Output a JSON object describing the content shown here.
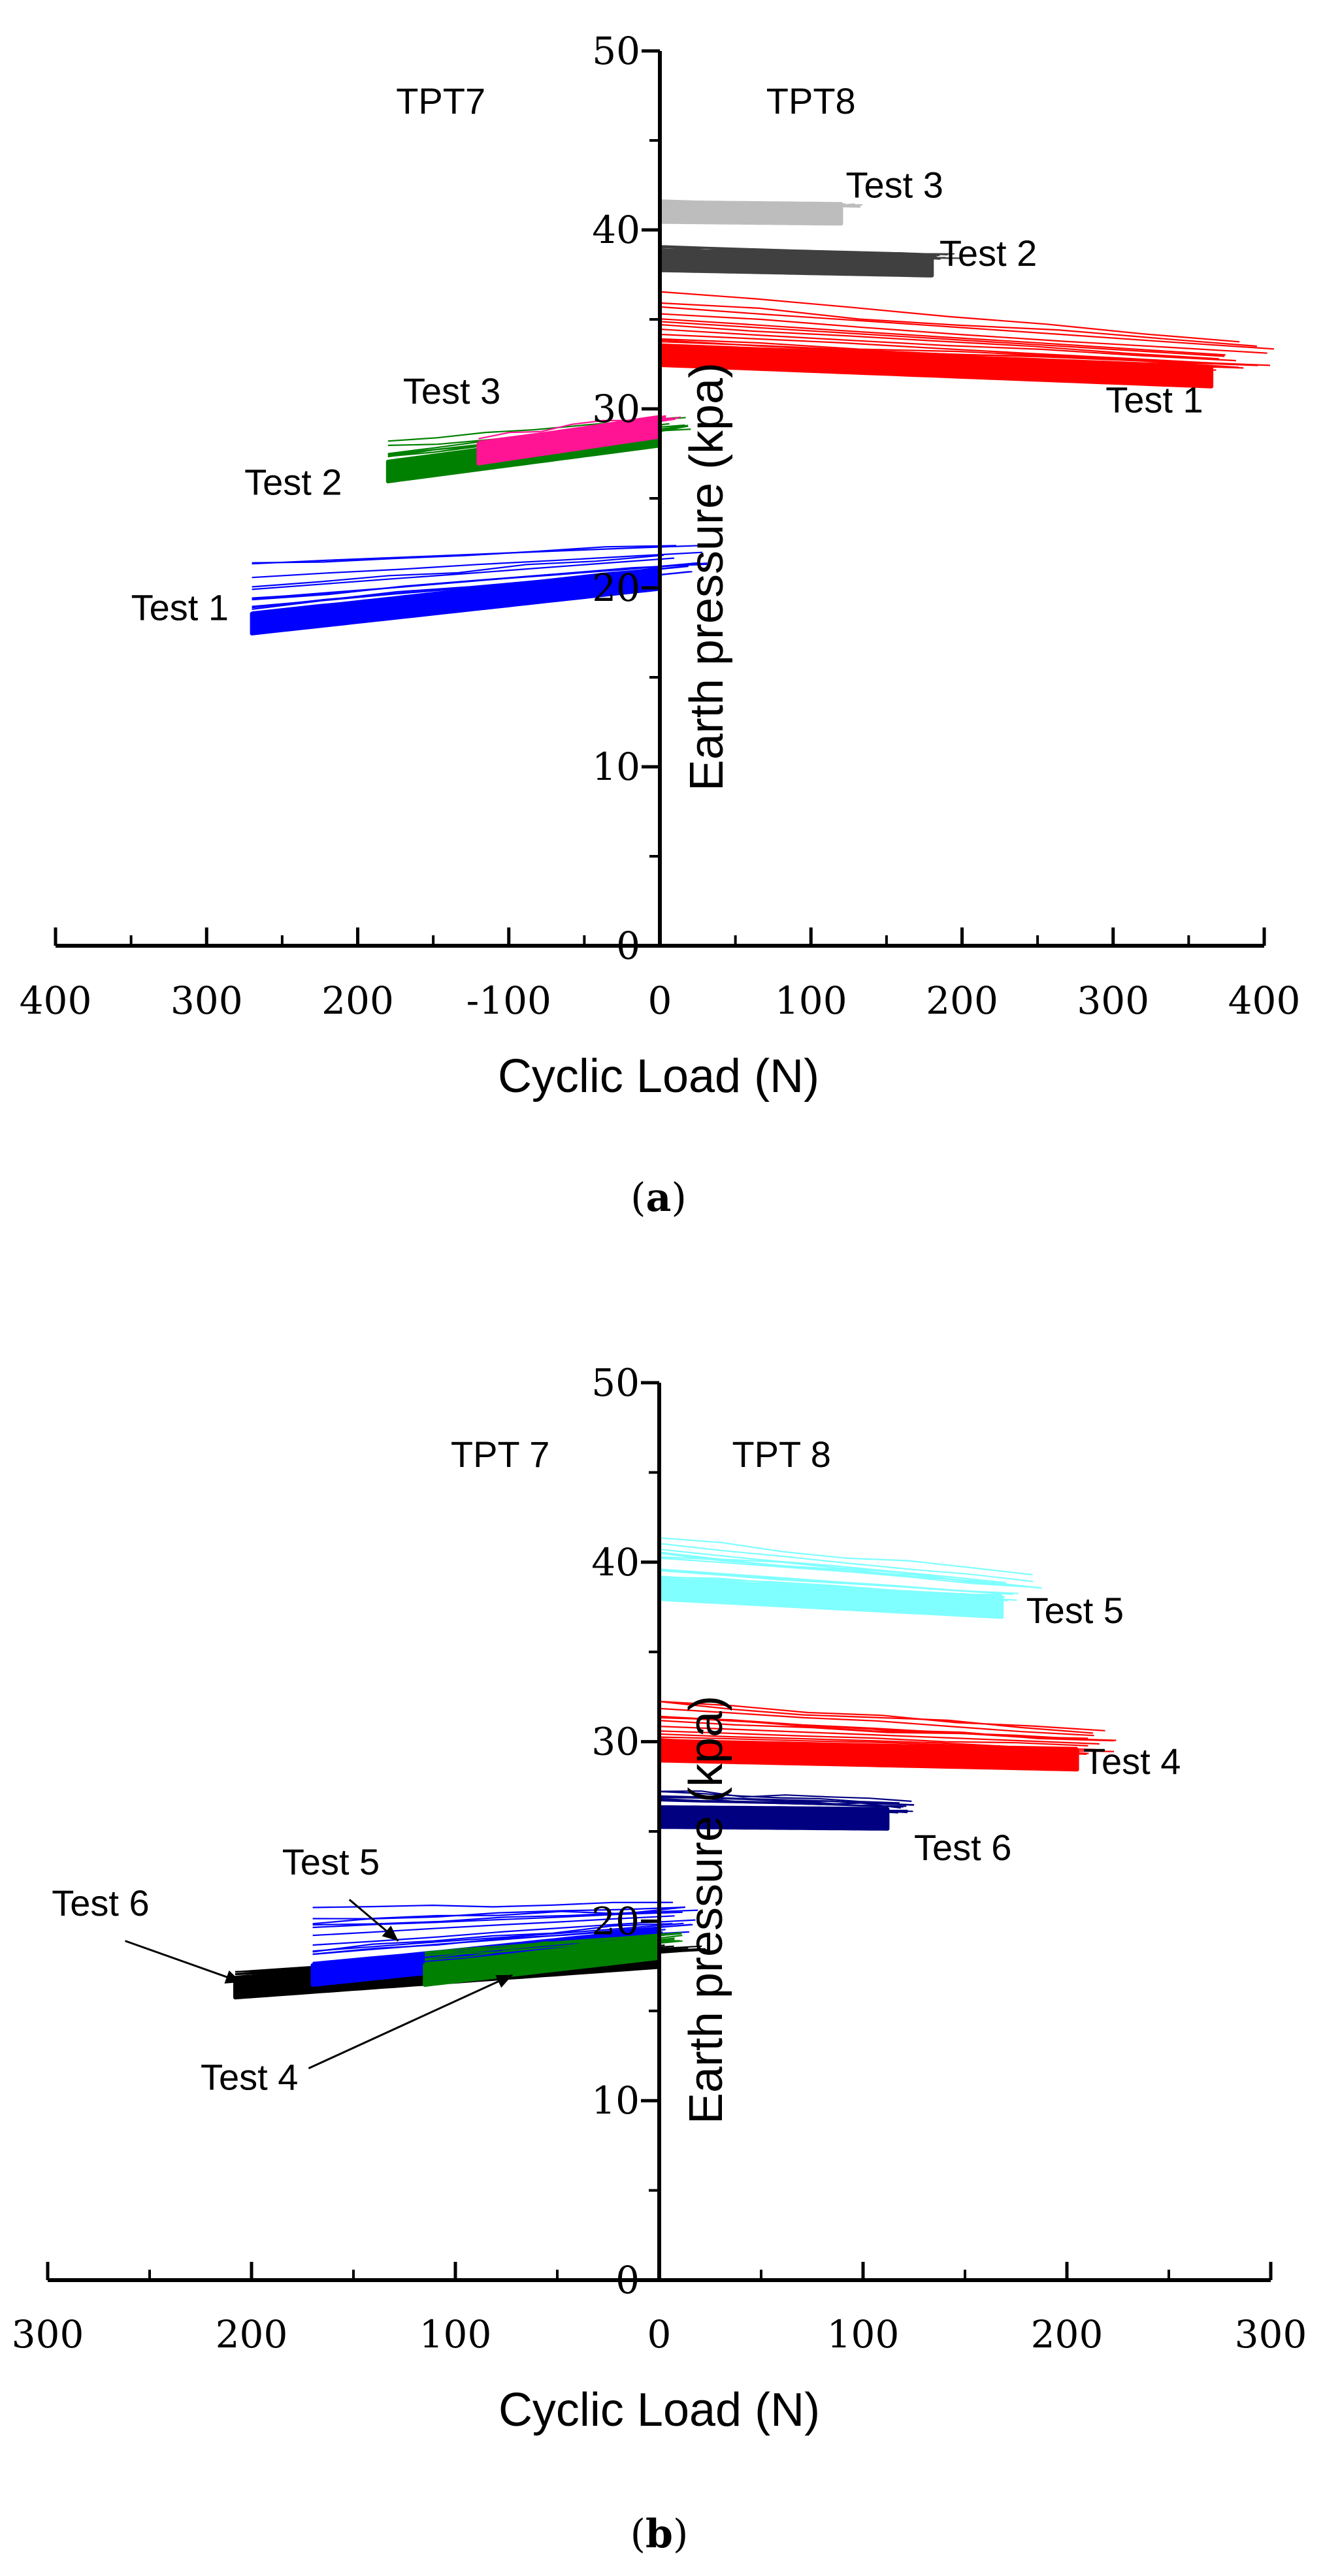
{
  "chart_data": [
    {
      "panel_label": "(a)",
      "type": "line",
      "xlabel": "Cyclic Load (N)",
      "ylabel": "Earth pressure (kpa)",
      "xlim": [
        -400,
        400
      ],
      "ylim": [
        0,
        50
      ],
      "x_ticks": [
        -400,
        -300,
        -200,
        -100,
        0,
        100,
        200,
        300,
        400
      ],
      "x_tick_labels": [
        "400",
        "300",
        "200",
        "-100",
        "0",
        "100",
        "200",
        "300",
        "400"
      ],
      "y_ticks": [
        0,
        10,
        20,
        30,
        40,
        50
      ],
      "y_tick_labels": [
        "0",
        "10",
        "20",
        "30",
        "40",
        "50"
      ],
      "sensors": [
        {
          "label": "TPT7",
          "x": -145,
          "y": 46.5
        },
        {
          "label": "TPT8",
          "x": 100,
          "y": 46.5
        }
      ],
      "series": [
        {
          "name": "Test 1",
          "sensor": "TPT7",
          "color": "#0000ff",
          "x_range": [
            -270,
            0
          ],
          "y_start": 18.0,
          "y_end": 20.5,
          "upper_excursion": 23.5
        },
        {
          "name": "Test 2",
          "sensor": "TPT7",
          "color": "#008000",
          "x_range": [
            -180,
            0
          ],
          "y_start": 26.5,
          "y_end": 28.5,
          "upper_excursion": 30.0
        },
        {
          "name": "Test 3",
          "sensor": "TPT7",
          "color": "#ff1493",
          "x_range": [
            -120,
            0
          ],
          "y_start": 27.5,
          "y_end": 29.0,
          "upper_excursion": 29.5
        },
        {
          "name": "Test 1",
          "sensor": "TPT8",
          "color": "#ff0000",
          "x_range": [
            0,
            365
          ],
          "y_start": 33.0,
          "y_end": 31.8,
          "upper_excursion": 36.5
        },
        {
          "name": "Test 2",
          "sensor": "TPT8",
          "color": "#404040",
          "x_range": [
            0,
            180
          ],
          "y_start": 38.3,
          "y_end": 38.0,
          "upper_excursion": 38.8
        },
        {
          "name": "Test 3",
          "sensor": "TPT8",
          "color": "#bdbdbd",
          "x_range": [
            0,
            120
          ],
          "y_start": 41.0,
          "y_end": 40.9,
          "upper_excursion": 41.3
        }
      ],
      "annotations": [
        {
          "text": "Test 3",
          "x": 123,
          "y": 41.8
        },
        {
          "text": "Test 2",
          "x": 185,
          "y": 38.0
        },
        {
          "text": "Test 1",
          "x": 295,
          "y": 29.8
        },
        {
          "text": "Test 3",
          "x": -170,
          "y": 30.3
        },
        {
          "text": "Test 2",
          "x": -275,
          "y": 25.2
        },
        {
          "text": "Test 1",
          "x": -350,
          "y": 18.2
        }
      ]
    },
    {
      "panel_label": "(b)",
      "type": "line",
      "xlabel": "Cyclic Load (N)",
      "ylabel": "Earth pressure (kpa)",
      "xlim": [
        -300,
        300
      ],
      "ylim": [
        0,
        50
      ],
      "x_ticks": [
        -300,
        -200,
        -100,
        0,
        100,
        200,
        300
      ],
      "x_tick_labels": [
        "300",
        "200",
        "100",
        "0",
        "100",
        "200",
        "300"
      ],
      "y_ticks": [
        0,
        10,
        20,
        30,
        40,
        50
      ],
      "y_tick_labels": [
        "0",
        "10",
        "20",
        "30",
        "40",
        "50"
      ],
      "sensors": [
        {
          "label": "TPT 7",
          "x": -78,
          "y": 45.3
        },
        {
          "label": "TPT 8",
          "x": 60,
          "y": 45.3
        }
      ],
      "series": [
        {
          "name": "Test 6",
          "sensor": "TPT7",
          "color": "#000000",
          "x_range": [
            -208,
            0
          ],
          "y_start": 16.3,
          "y_end": 18.0,
          "upper_excursion": 18.5
        },
        {
          "name": "Test 5",
          "sensor": "TPT7",
          "color": "#0000ff",
          "x_range": [
            -170,
            0
          ],
          "y_start": 17.0,
          "y_end": 19.0,
          "upper_excursion": 22.3
        },
        {
          "name": "Test 4",
          "sensor": "TPT7",
          "color": "#008000",
          "x_range": [
            -115,
            0
          ],
          "y_start": 17.0,
          "y_end": 18.5,
          "upper_excursion": 19.5
        },
        {
          "name": "Test 5",
          "sensor": "TPT8",
          "color": "#7fffff",
          "x_range": [
            0,
            168
          ],
          "y_start": 38.5,
          "y_end": 37.5,
          "upper_excursion": 41.5
        },
        {
          "name": "Test 4",
          "sensor": "TPT8",
          "color": "#ff0000",
          "x_range": [
            0,
            205
          ],
          "y_start": 29.5,
          "y_end": 29.0,
          "upper_excursion": 32.0
        },
        {
          "name": "Test 6",
          "sensor": "TPT8",
          "color": "#000080",
          "x_range": [
            0,
            112
          ],
          "y_start": 25.8,
          "y_end": 25.7,
          "upper_excursion": 26.9
        }
      ],
      "annotations": [
        {
          "text": "Test 5",
          "x": 180,
          "y": 36.6
        },
        {
          "text": "Test 4",
          "x": 208,
          "y": 28.2
        },
        {
          "text": "Test 6",
          "x": 125,
          "y": 23.4
        },
        {
          "text": "Test 5",
          "x": -185,
          "y": 22.6
        },
        {
          "text": "Test 6",
          "x": -298,
          "y": 20.3
        },
        {
          "text": "Test 4",
          "x": -225,
          "y": 10.6
        }
      ]
    }
  ]
}
